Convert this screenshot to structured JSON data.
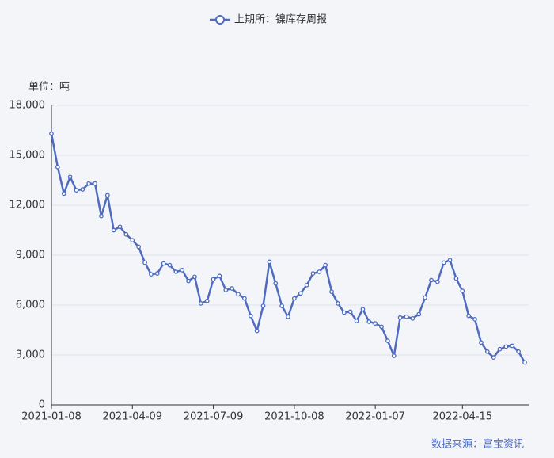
{
  "chart_data": {
    "type": "line",
    "legend_label": "上期所：镍库存周报",
    "unit_label": "单位：吨",
    "source": "数据来源：富宝资讯",
    "categories": [
      "2021-01-08",
      null,
      null,
      null,
      null,
      null,
      null,
      null,
      null,
      null,
      null,
      null,
      null,
      "2021-04-09",
      null,
      null,
      null,
      null,
      null,
      null,
      null,
      null,
      null,
      null,
      null,
      null,
      "2021-07-09",
      null,
      null,
      null,
      null,
      null,
      null,
      null,
      null,
      null,
      null,
      null,
      null,
      "2021-10-08",
      null,
      null,
      null,
      null,
      null,
      null,
      null,
      null,
      null,
      null,
      null,
      null,
      "2022-01-07",
      null,
      null,
      null,
      null,
      null,
      null,
      null,
      null,
      null,
      null,
      null,
      null,
      null,
      "2022-04-15",
      null,
      null,
      null,
      null,
      null,
      null,
      null,
      null,
      null,
      null
    ],
    "series": [
      {
        "name": "上期所：镍库存周报",
        "color": "#4f6bbf",
        "values": [
          16300,
          14300,
          12700,
          13700,
          12900,
          12950,
          13300,
          13300,
          11350,
          12600,
          10500,
          10700,
          10250,
          9900,
          9500,
          8550,
          7850,
          7900,
          8500,
          8400,
          8000,
          8100,
          7450,
          7700,
          6100,
          6250,
          7550,
          7750,
          6900,
          7000,
          6650,
          6400,
          5350,
          4450,
          5950,
          8600,
          7300,
          5950,
          5300,
          6400,
          6700,
          7200,
          7900,
          8000,
          8400,
          6800,
          6100,
          5550,
          5600,
          5050,
          5750,
          5000,
          4900,
          4700,
          3850,
          2950,
          5250,
          5300,
          5200,
          5450,
          6450,
          7500,
          7400,
          8550,
          8700,
          7600,
          6850,
          5350,
          5150,
          3750,
          3200,
          2850,
          3350,
          3500,
          3550,
          3200,
          2550
        ]
      }
    ],
    "ylim": [
      0,
      18000
    ],
    "yticks": [
      0,
      {
        "value": 3000,
        "label": "3,000"
      },
      {
        "value": 6000,
        "label": "6,000"
      },
      {
        "value": 9000,
        "label": "9,000"
      },
      {
        "value": 12000,
        "label": "12,000"
      },
      {
        "value": 15000,
        "label": "15,000"
      },
      {
        "value": 18000,
        "label": "18,000"
      }
    ],
    "grid": true
  }
}
